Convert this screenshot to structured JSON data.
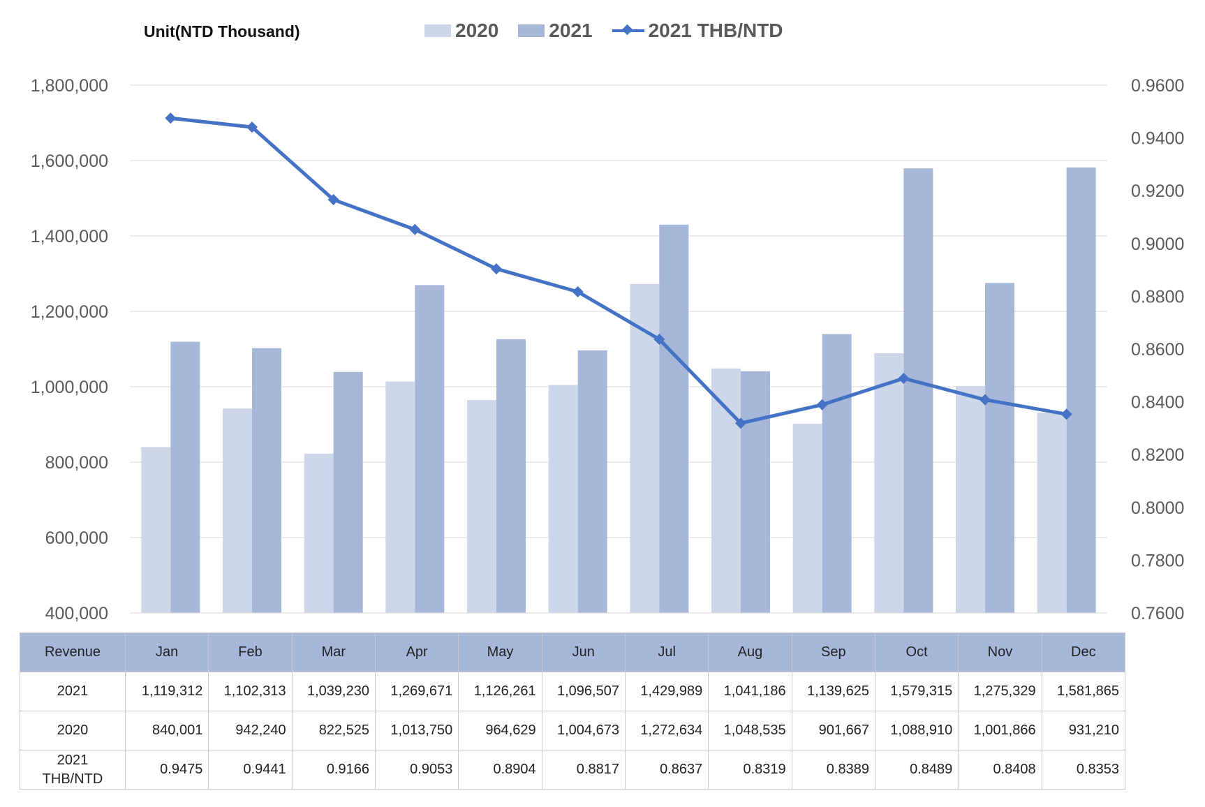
{
  "unit_label": "Unit(NTD  Thousand)",
  "legend": [
    {
      "label": "2020",
      "color": "#cdd7e9"
    },
    {
      "label": "2021",
      "color": "#a7b7da"
    },
    {
      "label": "2021 THB/NTD",
      "color": "#4472c4"
    }
  ],
  "chart_data": {
    "type": "bar",
    "categories": [
      "Jan",
      "Feb",
      "Mar",
      "Apr",
      "May",
      "Jun",
      "Jul",
      "Aug",
      "Sep",
      "Oct",
      "Nov",
      "Dec"
    ],
    "series": [
      {
        "name": "2020",
        "type": "bar",
        "axis": "left",
        "color": "#cdd7e9",
        "values": [
          840001,
          942240,
          822525,
          1013750,
          964629,
          1004673,
          1272634,
          1048535,
          901667,
          1088910,
          1001866,
          931210
        ]
      },
      {
        "name": "2021",
        "type": "bar",
        "axis": "left",
        "color": "#a7b7da",
        "values": [
          1119312,
          1102313,
          1039230,
          1269671,
          1126261,
          1096507,
          1429989,
          1041186,
          1139625,
          1579315,
          1275329,
          1581865
        ]
      },
      {
        "name": "2021 THB/NTD",
        "type": "line",
        "axis": "right",
        "color": "#4472c4",
        "values": [
          0.9475,
          0.9441,
          0.9166,
          0.9053,
          0.8904,
          0.8817,
          0.8637,
          0.8319,
          0.8389,
          0.8489,
          0.8408,
          0.8353
        ]
      }
    ],
    "ylim": [
      400000,
      1800000
    ],
    "y_ticks": [
      "400,000",
      "600,000",
      "800,000",
      "1,000,000",
      "1,200,000",
      "1,400,000",
      "1,600,000",
      "1,800,000"
    ],
    "y2lim": [
      0.76,
      0.96
    ],
    "y2_ticks": [
      "0.7600",
      "0.7800",
      "0.8000",
      "0.8200",
      "0.8400",
      "0.8600",
      "0.8800",
      "0.9000",
      "0.9200",
      "0.9400",
      "0.9600"
    ],
    "grid": true,
    "legend_position": "top"
  },
  "table": {
    "header": [
      "Revenue",
      "Jan",
      "Feb",
      "Mar",
      "Apr",
      "May",
      "Jun",
      "Jul",
      "Aug",
      "Sep",
      "Oct",
      "Nov",
      "Dec"
    ],
    "rows": [
      [
        "2021",
        "1,119,312",
        "1,102,313",
        "1,039,230",
        "1,269,671",
        "1,126,261",
        "1,096,507",
        "1,429,989",
        "1,041,186",
        "1,139,625",
        "1,579,315",
        "1,275,329",
        "1,581,865"
      ],
      [
        "2020",
        "840,001",
        "942,240",
        "822,525",
        "1,013,750",
        "964,629",
        "1,004,673",
        "1,272,634",
        "1,048,535",
        "901,667",
        "1,088,910",
        "1,001,866",
        "931,210"
      ],
      [
        "2021\nTHB/NTD",
        "0.9475",
        "0.9441",
        "0.9166",
        "0.9053",
        "0.8904",
        "0.8817",
        "0.8637",
        "0.8319",
        "0.8389",
        "0.8489",
        "0.8408",
        "0.8353"
      ]
    ]
  }
}
